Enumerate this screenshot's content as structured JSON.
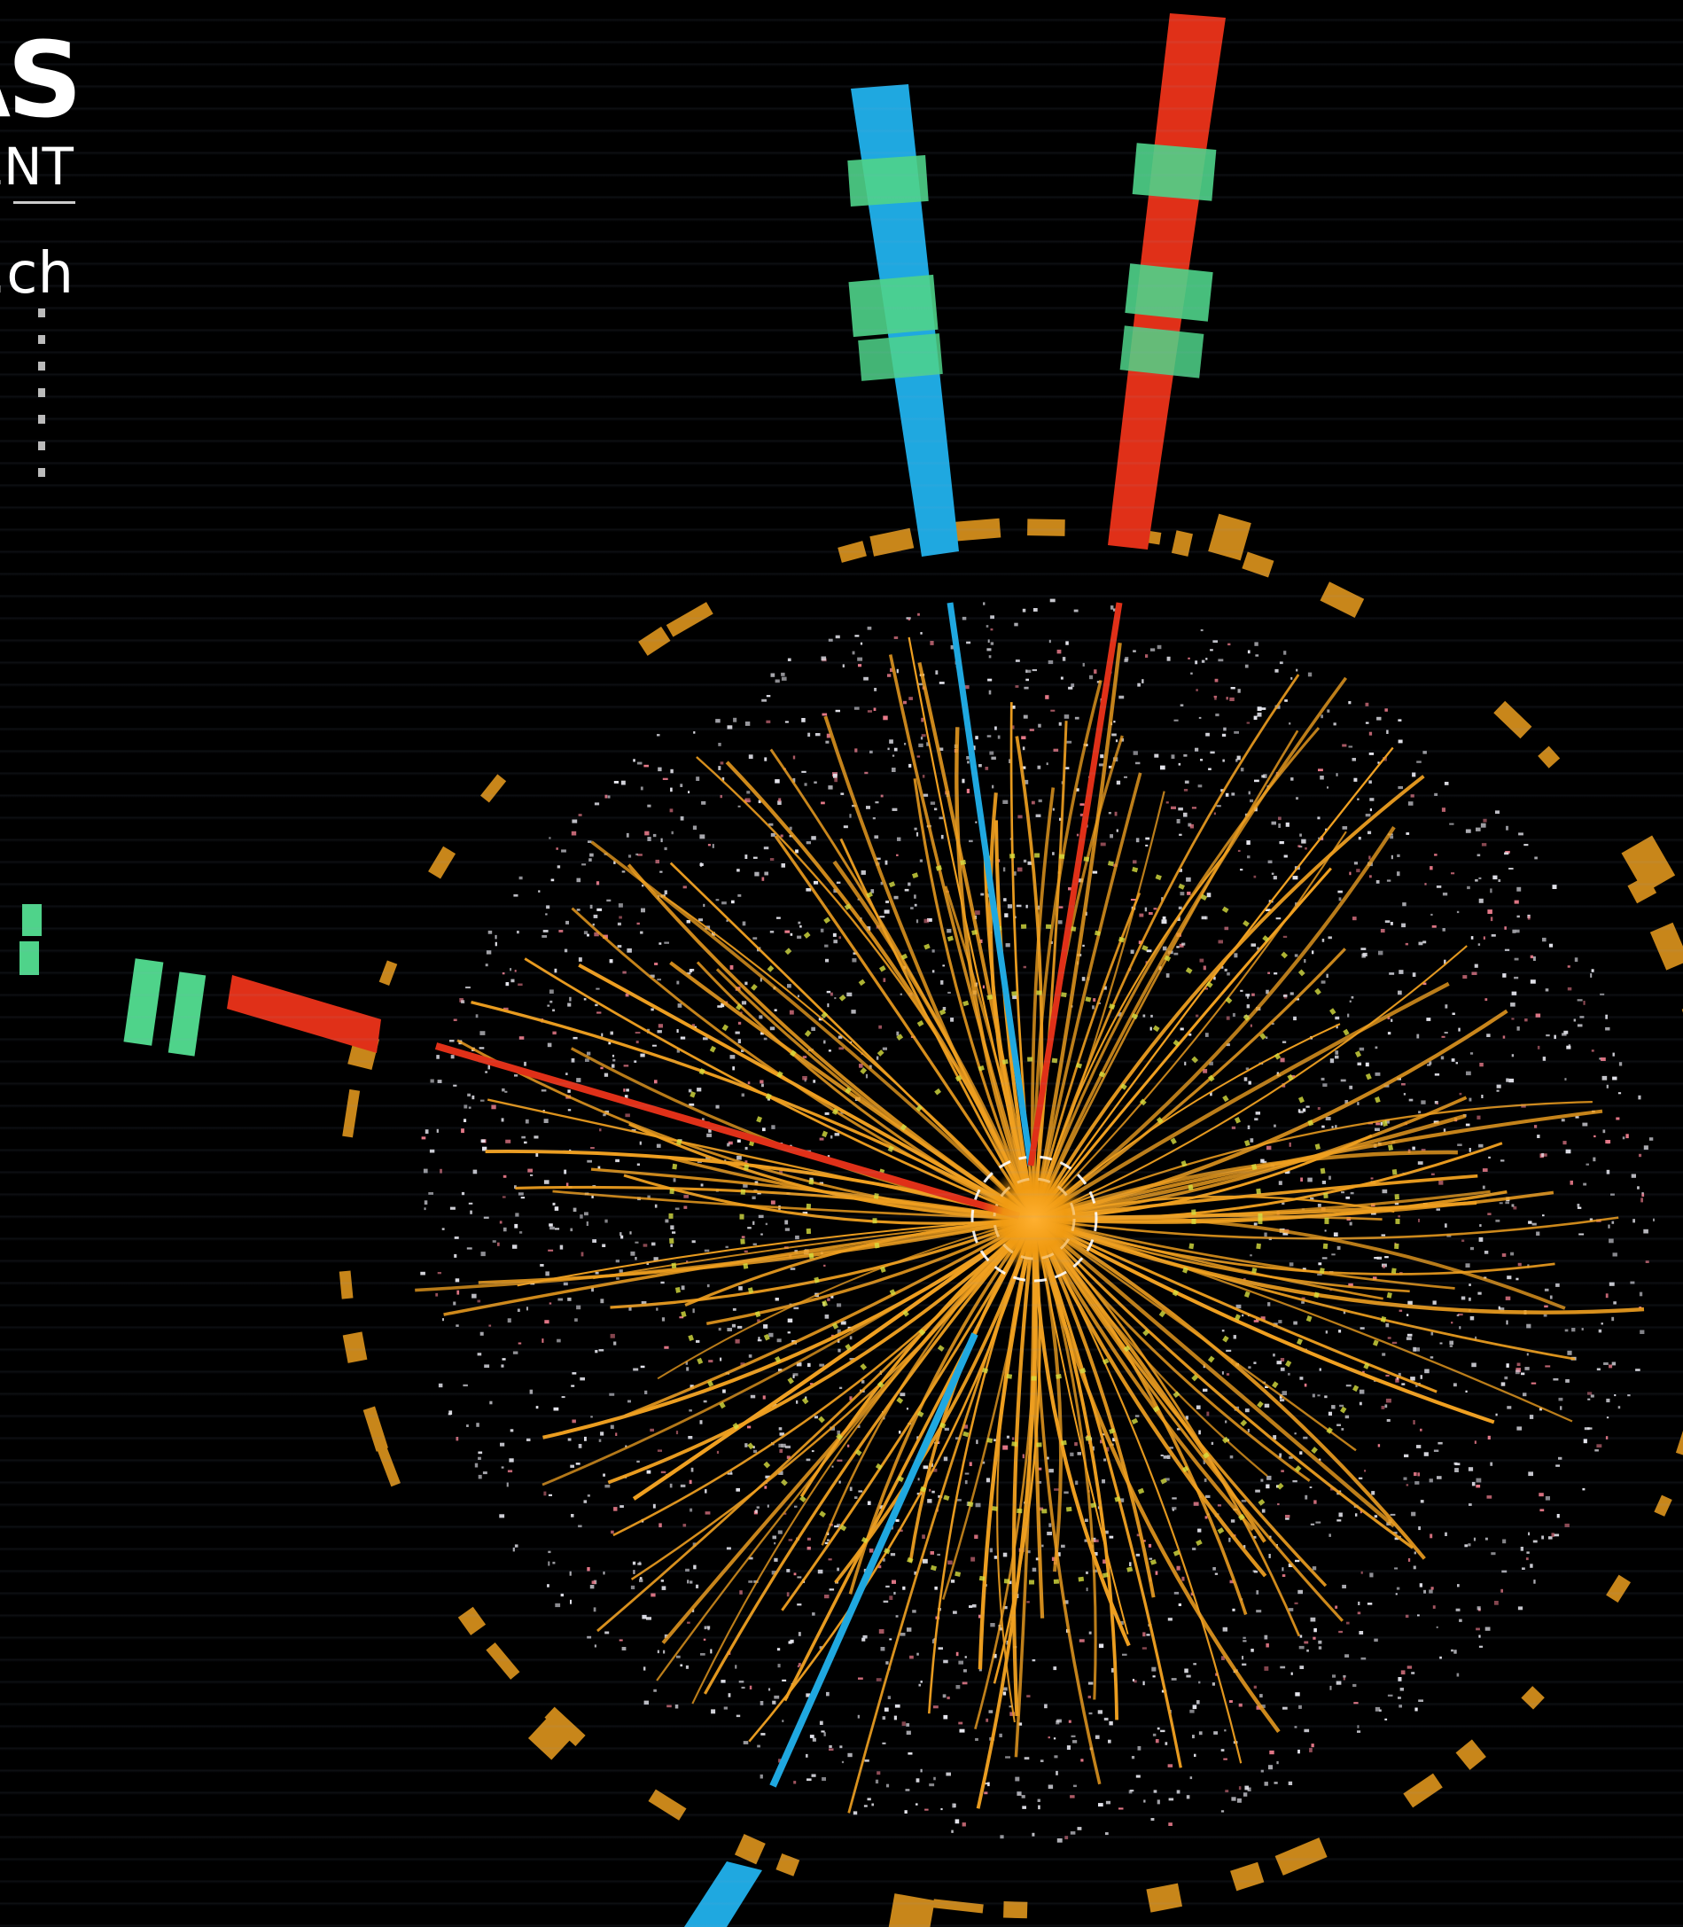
{
  "logo": {
    "word": "ATLAS",
    "subline": "EXPERIMENT",
    "url": "http://atlas.ch"
  },
  "colors": {
    "background": "#000000",
    "track_orange": "#f0a020",
    "hit_white": "#e8e8f0",
    "hit_pink": "#e87a8a",
    "muon_blue": "#1fa8e0",
    "electron_red": "#e03018",
    "calorimeter_green": "#4fd38a",
    "calorimeter_amber": "#c8861a",
    "vertex_yellow": "#d8e040"
  }
}
